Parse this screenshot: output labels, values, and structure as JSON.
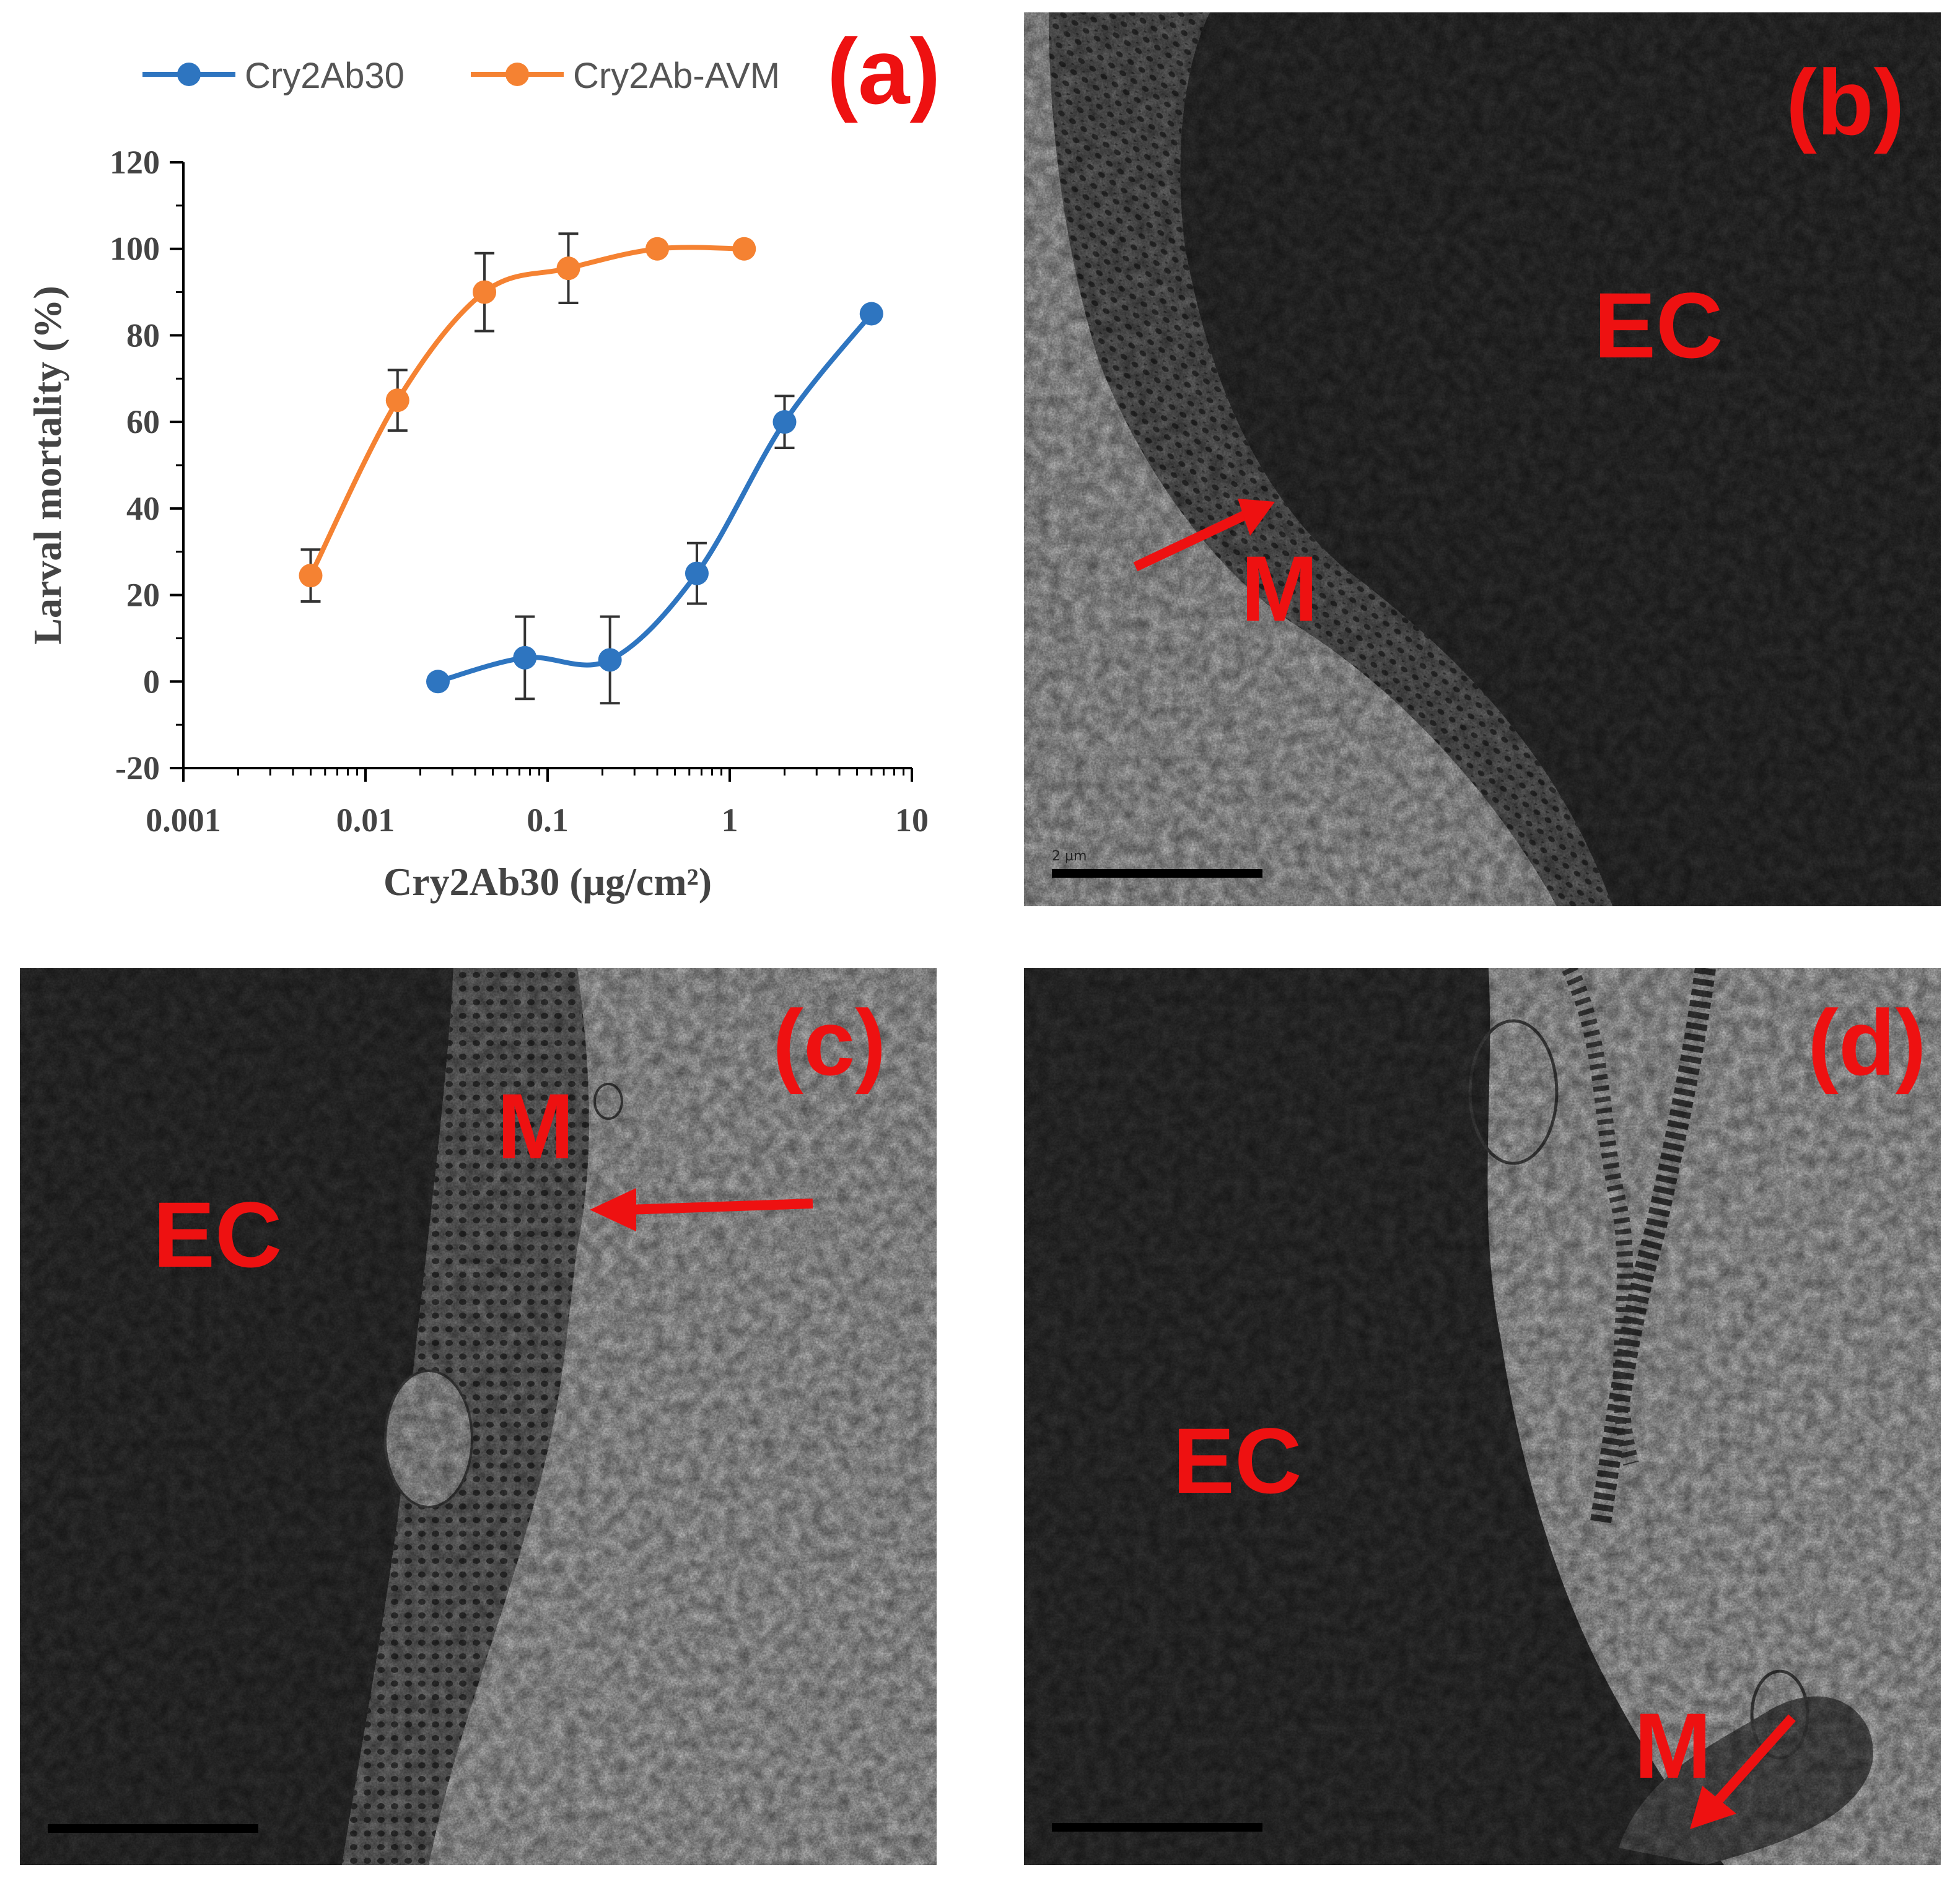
{
  "panels": {
    "a": {
      "letter": "(a)"
    },
    "b": {
      "letter": "(b)",
      "labels": {
        "ec": "EC",
        "m": "M"
      },
      "scale_text": "2 µm"
    },
    "c": {
      "letter": "(c)",
      "labels": {
        "ec": "EC",
        "m": "M"
      }
    },
    "d": {
      "letter": "(d)",
      "labels": {
        "ec": "EC",
        "m": "M"
      }
    }
  },
  "colors": {
    "label_red": "#ee1111",
    "series_blue": "#2e75c0",
    "series_orange": "#f58232",
    "tem_dark": "#3a3a3a",
    "tem_light": "#dedede"
  },
  "chart_data": {
    "type": "line",
    "title": "",
    "xlabel": "Cry2Ab30 (μg/cm²)",
    "ylabel": "Larval mortality (%)",
    "x_scale": "log",
    "xlim": [
      0.001,
      10
    ],
    "ylim": [
      -20,
      120
    ],
    "x_ticks": [
      0.001,
      0.01,
      0.1,
      1,
      10
    ],
    "x_tick_labels": [
      "0.001",
      "0.01",
      "0.1",
      "1",
      "10"
    ],
    "y_ticks": [
      -20,
      0,
      20,
      40,
      60,
      80,
      100,
      120
    ],
    "y_tick_labels": [
      "-20",
      "0",
      "20",
      "40",
      "60",
      "80",
      "100",
      "120"
    ],
    "legend_position": "top",
    "grid": false,
    "series": [
      {
        "name": "Cry2Ab30",
        "color": "#2e75c0",
        "x": [
          0.025,
          0.075,
          0.22,
          0.66,
          2.0,
          6.0
        ],
        "y": [
          0,
          5.5,
          5,
          25,
          60,
          85
        ],
        "error": [
          0,
          9.5,
          10,
          7,
          6,
          0
        ]
      },
      {
        "name": "Cry2Ab-AVM",
        "color": "#f58232",
        "x": [
          0.005,
          0.015,
          0.045,
          0.13,
          0.4,
          1.2
        ],
        "y": [
          24.5,
          65,
          90,
          95.5,
          100,
          100
        ],
        "error": [
          6,
          7,
          9,
          8,
          0,
          0
        ]
      }
    ]
  }
}
